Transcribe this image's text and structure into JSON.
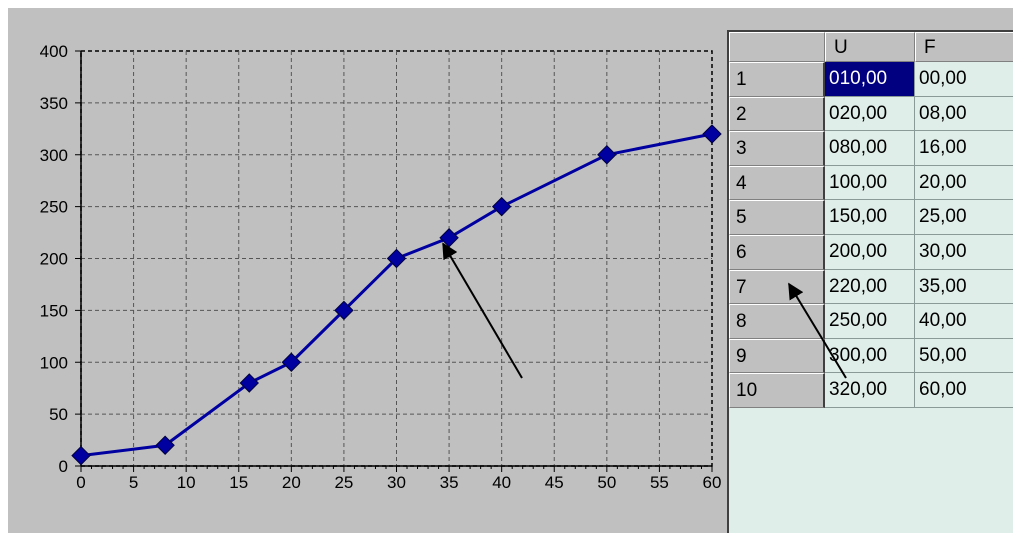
{
  "chart_data": {
    "type": "line",
    "x": [
      0,
      8,
      16,
      20,
      25,
      30,
      35,
      40,
      50,
      60
    ],
    "series": [
      {
        "values": [
          10,
          20,
          80,
          100,
          150,
          200,
          220,
          250,
          300,
          320
        ],
        "color": "#0000a0",
        "marker": "diamond"
      }
    ],
    "xlim": [
      0,
      60
    ],
    "ylim": [
      0,
      400
    ],
    "x_ticks": [
      "0",
      "5",
      "10",
      "15",
      "20",
      "25",
      "30",
      "35",
      "40",
      "45",
      "50",
      "55",
      "60"
    ],
    "y_ticks": [
      "0",
      "50",
      "100",
      "150",
      "200",
      "250",
      "300",
      "350",
      "400"
    ],
    "grid": true,
    "annotations": [
      "arrow pointing to point (35, 220)",
      "arrow pointing to table row 6"
    ]
  },
  "table": {
    "headers": [
      "U",
      "F"
    ],
    "rows": [
      {
        "n": "1",
        "u": "010,00",
        "f": "00,00"
      },
      {
        "n": "2",
        "u": "020,00",
        "f": "08,00"
      },
      {
        "n": "3",
        "u": "080,00",
        "f": "16,00"
      },
      {
        "n": "4",
        "u": "100,00",
        "f": "20,00"
      },
      {
        "n": "5",
        "u": "150,00",
        "f": "25,00"
      },
      {
        "n": "6",
        "u": "200,00",
        "f": "30,00"
      },
      {
        "n": "7",
        "u": "220,00",
        "f": "35,00"
      },
      {
        "n": "8",
        "u": "250,00",
        "f": "40,00"
      },
      {
        "n": "9",
        "u": "300,00",
        "f": "50,00"
      },
      {
        "n": "10",
        "u": "320,00",
        "f": "60,00"
      }
    ],
    "selected_cell": "row 1, column U"
  },
  "colors": {
    "panel": "#c0c0c0",
    "grid_cell": "#e0eeea",
    "selection": "#000080",
    "series": "#0000a0"
  }
}
